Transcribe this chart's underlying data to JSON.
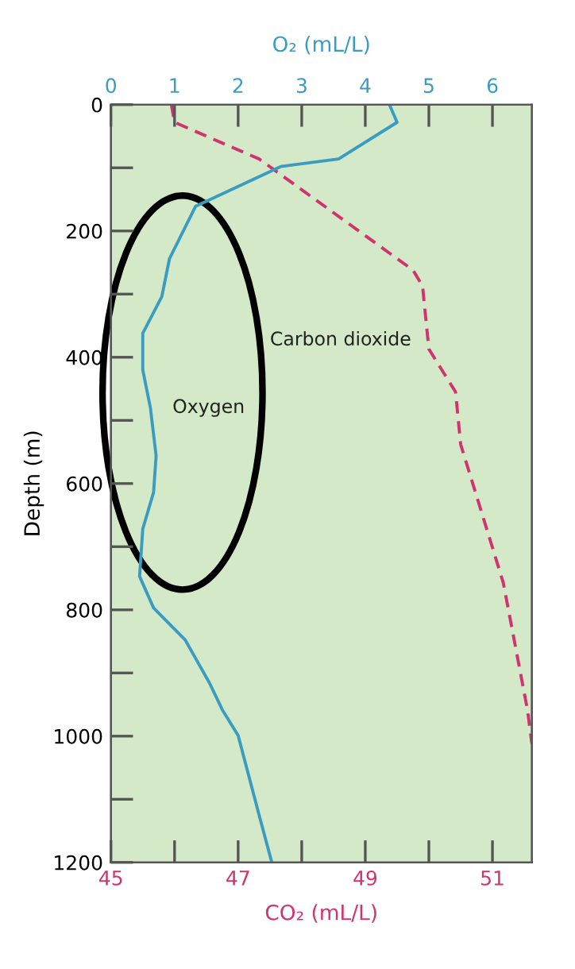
{
  "chart_data": {
    "type": "line",
    "xlabel": "CO₂ (mL/L)",
    "x2label": "O₂ (mL/L)",
    "ylabel": "Depth (m)",
    "xlim": [
      45,
      51.62
    ],
    "xticks": [
      45,
      {
        "value": 46,
        "label": null
      },
      47,
      {
        "value": 48,
        "label": null
      },
      49,
      {
        "value": 50,
        "label": null
      },
      51
    ],
    "x2lim": [
      0,
      6.62
    ],
    "x2ticks": [
      0,
      1,
      2,
      3,
      4,
      5,
      6
    ],
    "ylim": [
      1200,
      0
    ],
    "yticks": [
      0,
      {
        "value": 100,
        "label": null
      },
      200,
      {
        "value": 300,
        "label": null
      },
      400,
      {
        "value": 500,
        "label": null
      },
      600,
      {
        "value": 700,
        "label": null
      },
      800,
      {
        "value": 900,
        "label": null
      },
      1000,
      {
        "value": 1100,
        "label": null
      },
      1200
    ],
    "grid": false,
    "series": [
      {
        "name": "Oxygen",
        "color": "#3a9cc0",
        "axis": "x2",
        "line_style": "solid",
        "x": [
          4.38,
          4.5,
          3.58,
          2.67,
          1.33,
          0.92,
          0.8,
          0.5,
          0.5,
          0.62,
          0.71,
          0.67,
          0.5,
          0.45,
          0.67,
          1.17,
          1.55,
          1.75,
          2.0,
          2.33,
          2.53
        ],
        "values": [
          0,
          28,
          86,
          98,
          161,
          244,
          304,
          362,
          420,
          480,
          556,
          614,
          672,
          747,
          797,
          848,
          916,
          958,
          999,
          1125,
          1200
        ]
      },
      {
        "name": "Carbon dioxide",
        "color": "#d0336e",
        "line_style": "dashed",
        "x": [
          45.95,
          46.0,
          47.33,
          49.75,
          49.9,
          50.0,
          50.42,
          50.5,
          51.17,
          51.55,
          51.62
        ],
        "values": [
          0,
          28,
          86,
          262,
          287,
          387,
          455,
          538,
          757,
          958,
          1012
        ]
      }
    ]
  }
}
